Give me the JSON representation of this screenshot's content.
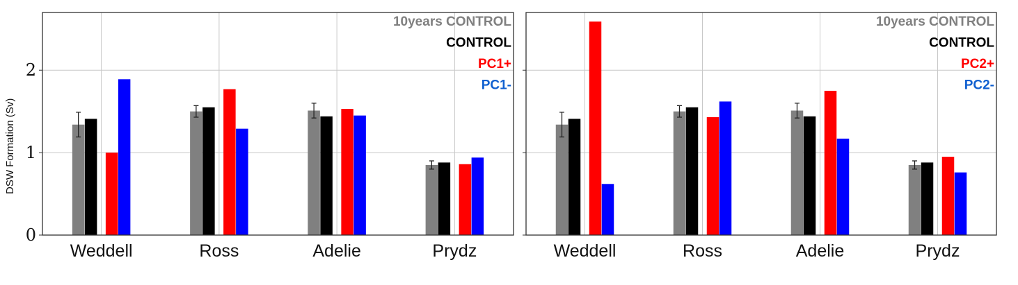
{
  "chart_data": [
    {
      "type": "bar",
      "ylabel": "DSW Formation (Sv)",
      "ylim": [
        0,
        2.7
      ],
      "yticks": [
        0,
        1,
        2
      ],
      "categories": [
        "Weddell",
        "Ross",
        "Adelie",
        "Prydz"
      ],
      "grid": true,
      "legend_position": "top-right",
      "series": [
        {
          "name": "10years CONTROL",
          "color": "#808080",
          "values": [
            1.34,
            1.5,
            1.51,
            0.85
          ],
          "errors": [
            0.15,
            0.07,
            0.09,
            0.05
          ]
        },
        {
          "name": "CONTROL",
          "color": "#000000",
          "values": [
            1.41,
            1.55,
            1.44,
            0.88
          ],
          "errors": [
            0,
            0,
            0,
            0
          ]
        },
        {
          "name": "PC1+",
          "color": "#ff0000",
          "values": [
            1.0,
            1.77,
            1.53,
            0.86
          ],
          "errors": [
            0,
            0,
            0,
            0
          ]
        },
        {
          "name": "PC1-",
          "color": "#0000ff",
          "values": [
            1.89,
            1.29,
            1.45,
            0.94
          ],
          "errors": [
            0,
            0,
            0,
            0
          ]
        }
      ]
    },
    {
      "type": "bar",
      "ylabel": "",
      "ylim": [
        0,
        2.7
      ],
      "yticks": [
        0,
        1,
        2
      ],
      "categories": [
        "Weddell",
        "Ross",
        "Adelie",
        "Prydz"
      ],
      "grid": true,
      "legend_position": "top-right",
      "series": [
        {
          "name": "10years CONTROL",
          "color": "#808080",
          "values": [
            1.34,
            1.5,
            1.51,
            0.85
          ],
          "errors": [
            0.15,
            0.07,
            0.09,
            0.05
          ]
        },
        {
          "name": "CONTROL",
          "color": "#000000",
          "values": [
            1.41,
            1.55,
            1.44,
            0.88
          ],
          "errors": [
            0,
            0,
            0,
            0
          ]
        },
        {
          "name": "PC2+",
          "color": "#ff0000",
          "values": [
            2.59,
            1.43,
            1.75,
            0.95
          ],
          "errors": [
            0,
            0,
            0,
            0
          ]
        },
        {
          "name": "PC2-",
          "color": "#0000ff",
          "values": [
            0.62,
            1.62,
            1.17,
            0.76
          ],
          "errors": [
            0,
            0,
            0,
            0
          ]
        }
      ]
    }
  ],
  "legend_colors": {
    "10years CONTROL": "#808080",
    "CONTROL": "#000000",
    "PC1+": "#ff0000",
    "PC1-": "#1060d0",
    "PC2+": "#ff0000",
    "PC2-": "#1060d0"
  }
}
